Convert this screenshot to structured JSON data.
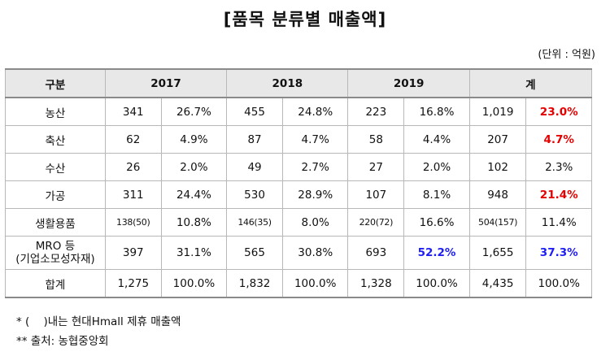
{
  "title": "[품목 분류별 매출액]",
  "unit_note": "(단위 : 억원)",
  "table": {
    "headers": [
      "구분",
      "2017",
      "2018",
      "2019",
      "계"
    ],
    "rows": [
      {
        "label": "농산",
        "label2": "",
        "y2017": "341",
        "y2017p": "26.7%",
        "y2018": "455",
        "y2018p": "24.8%",
        "y2019": "223",
        "y2019p": "16.8%",
        "total": "1,019",
        "totalp": "23.0%"
      },
      {
        "label": "축산",
        "label2": "",
        "y2017": "62",
        "y2017p": "4.9%",
        "y2018": "87",
        "y2018p": "4.7%",
        "y2019": "58",
        "y2019p": "4.4%",
        "total": "207",
        "totalp": "4.7%"
      },
      {
        "label": "수산",
        "label2": "",
        "y2017": "26",
        "y2017p": "2.0%",
        "y2018": "49",
        "y2018p": "2.7%",
        "y2019": "27",
        "y2019p": "2.0%",
        "total": "102",
        "totalp": "2.3%"
      },
      {
        "label": "가공",
        "label2": "",
        "y2017": "311",
        "y2017p": "24.4%",
        "y2018": "530",
        "y2018p": "28.9%",
        "y2019": "107",
        "y2019p": "8.1%",
        "total": "948",
        "totalp": "21.4%"
      },
      {
        "label": "생활용품",
        "label2": "",
        "y2017": "138(50)",
        "y2017p": "10.8%",
        "y2018": "146(35)",
        "y2018p": "8.0%",
        "y2019": "220(72)",
        "y2019p": "16.6%",
        "total": "504(157)",
        "totalp": "11.4%"
      },
      {
        "label": "MRO 등",
        "label2": "(기업소모성자재)",
        "y2017": "397",
        "y2017p": "31.1%",
        "y2018": "565",
        "y2018p": "30.8%",
        "y2019": "693",
        "y2019p": "52.2%",
        "total": "1,655",
        "totalp": "37.3%"
      },
      {
        "label": "합계",
        "label2": "",
        "y2017": "1,275",
        "y2017p": "100.0%",
        "y2018": "1,832",
        "y2018p": "100.0%",
        "y2019": "1,328",
        "y2019p": "100.0%",
        "total": "4,435",
        "totalp": "100.0%"
      }
    ]
  },
  "colors": {
    "highlight_red": "#e60000",
    "highlight_blue": "#1e1ef5",
    "header_bg": "#e8e8e8"
  },
  "footnotes": [
    "* (    )내는 현대Hmall 제휴 매출액",
    "** 출처: 농협중앙회"
  ]
}
